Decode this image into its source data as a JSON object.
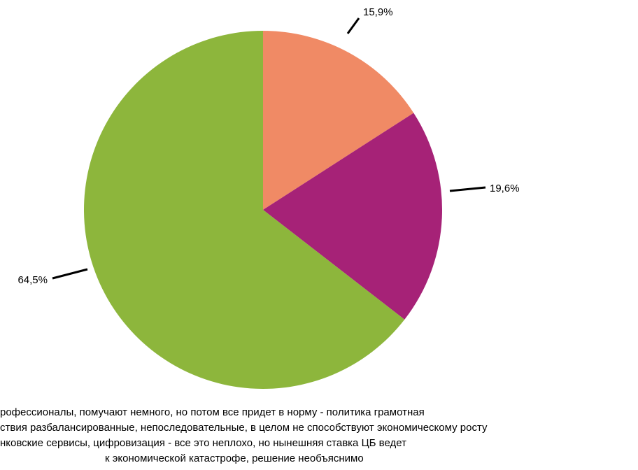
{
  "chart_data": {
    "type": "pie",
    "categories": [
      [
        "рофессионалы, помучают немного, но потом все придет в норму - политика грамотная"
      ],
      [
        "ствия разбалансированные, непоследовательные, в целом не способствуют экономическому росту"
      ],
      [
        "нковские сервисы, цифровизация - все это неплохо, но нынешняя ставка ЦБ ведет",
        "к экономической катастрофе, решение необъяснимо"
      ]
    ],
    "values": [
      15.9,
      19.6,
      64.5
    ],
    "value_labels": [
      "15,9%",
      "19,6%",
      "64,5%"
    ],
    "colors": [
      "#f08a65",
      "#a62277",
      "#8db63c"
    ]
  }
}
